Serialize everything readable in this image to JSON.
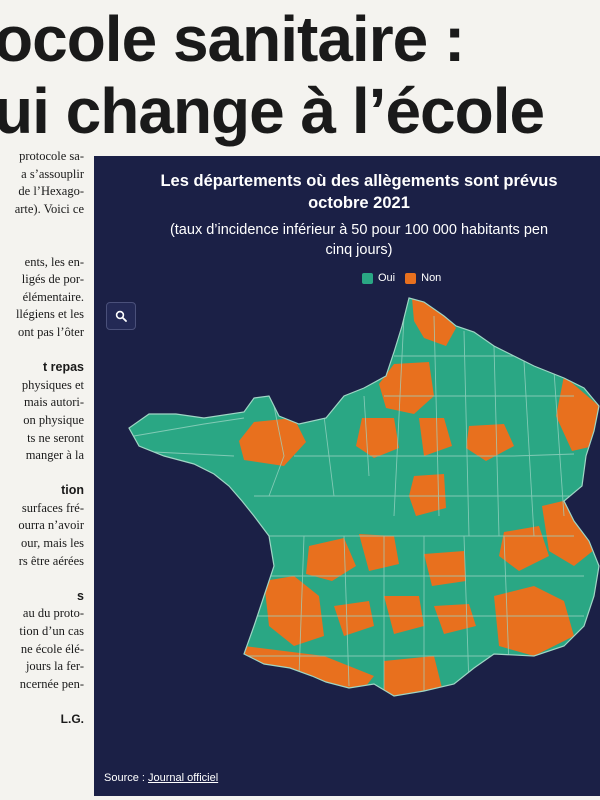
{
  "headline": {
    "line1": "ocole sanitaire :",
    "line2": "ui change à l’école"
  },
  "article": {
    "lines": [
      "protocole sa-",
      "a s’assouplir",
      "de l’Hexago-",
      "arte). Voici ce",
      "",
      "",
      "ents, les en-",
      "ligés de por-",
      "élémentaire.",
      "llégiens et les",
      "ont pas l’ôter",
      "",
      "t repas",
      "physiques et",
      "mais autori-",
      "on physique",
      "ts ne seront",
      "manger à la",
      "",
      "tion",
      "surfaces fré-",
      "ourra n’avoir",
      "our, mais les",
      "rs être aérées",
      "",
      "s",
      "au du proto-",
      "tion d’un cas",
      "ne école élé-",
      "jours la fer-",
      "ncernée pen-",
      "",
      "L.G."
    ]
  },
  "infographic": {
    "title_line1": "Les départements où des allègements sont prévus",
    "title_line2": "octobre 2021",
    "subtitle_line1": "(taux d’incidence inférieur à 50 pour 100 000 habitants pen",
    "subtitle_line2": "cinq jours)",
    "legend": [
      {
        "label": "Oui",
        "color": "#2aa784"
      },
      {
        "label": "Non",
        "color": "#e8701e"
      }
    ],
    "zoom_icon": "magnifier-icon",
    "source_label": "Source :",
    "source_link": "Journal officiel",
    "colors": {
      "background": "#1b2046",
      "border": "#9fd6c5"
    }
  }
}
